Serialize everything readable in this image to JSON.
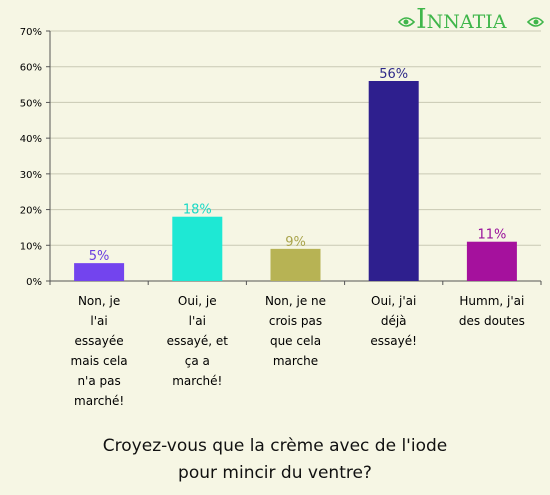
{
  "brand": {
    "logo_text": "Innatia",
    "color": "#3fb64a"
  },
  "chart_data": {
    "type": "bar",
    "categories": [
      "Non, je l'ai essayée mais cela n'a pas marché!",
      "Oui, je l'ai essayé, et ça a marché!",
      "Non, je ne crois pas que cela marche",
      "Oui, j'ai déjà essayé!",
      "Humm, j'ai des doutes"
    ],
    "category_lines": [
      [
        "Non, je",
        "l'ai",
        "essayée",
        "mais cela",
        "n'a pas",
        "marché!"
      ],
      [
        "Oui, je",
        "l'ai",
        "essayé, et",
        "ça a",
        "marché!"
      ],
      [
        "Non, je ne",
        "crois pas",
        "que cela",
        "marche"
      ],
      [
        "Oui, j'ai",
        "déjà",
        "essayé!"
      ],
      [
        "Humm, j'ai",
        "des doutes"
      ]
    ],
    "values": [
      5,
      18,
      9,
      56,
      11
    ],
    "value_labels": [
      "5%",
      "18%",
      "9%",
      "56%",
      "11%"
    ],
    "colors": [
      "#7344ee",
      "#1ee8d4",
      "#b7b354",
      "#2e1f8e",
      "#a5119d"
    ],
    "label_colors": [
      "#6a3ee0",
      "#1ad9c6",
      "#a9a44c",
      "#2e2a8a",
      "#98109a"
    ],
    "yticks": [
      "0%",
      "10%",
      "20%",
      "30%",
      "40%",
      "50%",
      "60%",
      "70%"
    ],
    "ylim": [
      0,
      70
    ],
    "grid": true,
    "title": "Croyez-vous que la crème avec de l'iode pour mincir du ventre?",
    "title_lines": [
      "Croyez-vous que la crème avec de l'iode",
      "pour mincir du ventre?"
    ]
  }
}
